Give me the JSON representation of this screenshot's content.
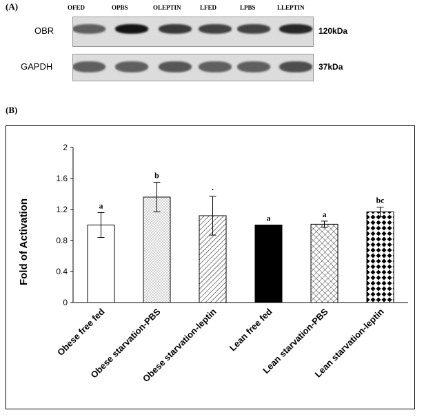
{
  "panel_a": {
    "label": "(A)",
    "lanes": [
      "OFED",
      "OPBS",
      "OLEPTIN",
      "LFED",
      "LPBS",
      "LLEPTIN"
    ],
    "rows": [
      {
        "name": "OBR",
        "size": "120kDa",
        "band_intensity": [
          0.55,
          0.95,
          0.75,
          0.7,
          0.7,
          0.85
        ]
      },
      {
        "name": "GAPDH",
        "size": "37kDa",
        "band_intensity": [
          0.55,
          0.55,
          0.6,
          0.55,
          0.55,
          0.65
        ]
      }
    ]
  },
  "chart_data": {
    "panel_label": "(B)",
    "type": "bar",
    "title": "",
    "xlabel": "",
    "ylabel": "Fold of Activation",
    "ylim": [
      0,
      2
    ],
    "yticks": [
      "0",
      "0.4",
      "0.8",
      "1.2",
      "1.6",
      "2"
    ],
    "grid": false,
    "categories": [
      "Obese free fed",
      "Obese starvation-PBS",
      "Obese starvation-leptin",
      "Lean free fed",
      "Lean starvation-PBS",
      "Lean starvation-leptin"
    ],
    "values": [
      1.0,
      1.36,
      1.12,
      1.0,
      1.01,
      1.17
    ],
    "errors": [
      0.16,
      0.19,
      0.25,
      0.0,
      0.04,
      0.06
    ],
    "significance": [
      "a",
      "b",
      "·",
      "a",
      "a",
      "bc"
    ],
    "fills": [
      "white",
      "dots",
      "hatch",
      "black",
      "crosshatch",
      "diamond"
    ]
  }
}
